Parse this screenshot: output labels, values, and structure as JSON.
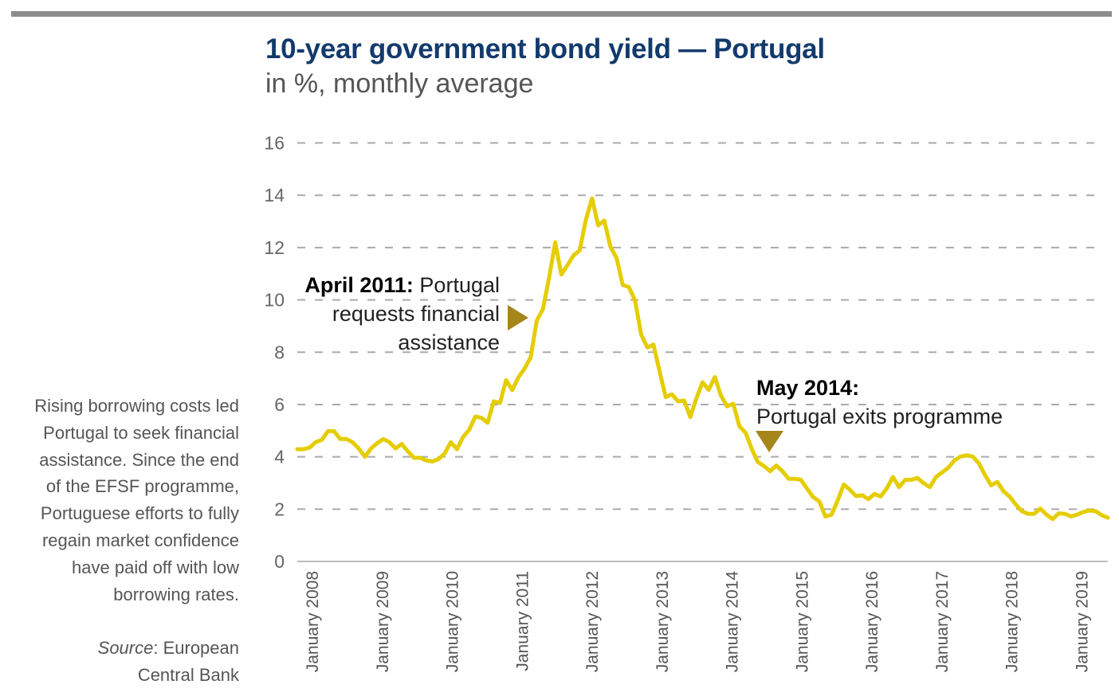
{
  "header": {
    "title": "10-year government bond yield — Portugal",
    "subtitle": "in %, monthly average"
  },
  "sidebar": {
    "lines": [
      "Rising borrowing costs led",
      "Portugal to seek financial",
      "assistance. Since the end",
      "of the EFSF programme,",
      "Portuguese efforts to fully",
      "regain market confidence",
      "have paid off with low",
      "borrowing rates."
    ],
    "source_label": "Source",
    "source_rest": ": European",
    "source_line2": "Central Bank"
  },
  "annotations": {
    "april2011": {
      "bold": "April 2011:",
      "line1": " Portugal",
      "line2": "requests financial",
      "line3": "assistance",
      "index": 39
    },
    "may2014": {
      "bold": "May 2014:",
      "line2": "Portugal exits programme",
      "index": 78
    }
  },
  "colors": {
    "title": "#123a6d",
    "line": "#e5cd00",
    "marker": "#a6861a",
    "grid": "#aaaaaa",
    "text": "#555555"
  },
  "chart_data": {
    "type": "line",
    "title": "10-year government bond yield — Portugal",
    "subtitle": "in %, monthly average",
    "xlabel": "",
    "ylabel": "%",
    "ylim": [
      0,
      16
    ],
    "yticks": [
      "0",
      "2",
      "4",
      "6",
      "8",
      "10",
      "12",
      "14",
      "16"
    ],
    "grid": true,
    "x_start": "January 2008",
    "frequency": "monthly",
    "xticks": [
      "January 2008",
      "January 2009",
      "January 2010",
      "January 2011",
      "January 2012",
      "January 2013",
      "January 2014",
      "January 2015",
      "January 2016",
      "January 2017",
      "January 2018",
      "January 2019"
    ],
    "series": [
      {
        "name": "Portugal 10-year yield",
        "values": [
          4.29,
          4.29,
          4.35,
          4.56,
          4.65,
          4.98,
          4.98,
          4.68,
          4.68,
          4.56,
          4.32,
          4.0,
          4.32,
          4.52,
          4.68,
          4.56,
          4.32,
          4.49,
          4.21,
          3.96,
          3.96,
          3.86,
          3.82,
          3.91,
          4.13,
          4.56,
          4.29,
          4.76,
          5.03,
          5.54,
          5.49,
          5.3,
          6.12,
          6.06,
          6.93,
          6.55,
          7.04,
          7.37,
          7.8,
          9.21,
          9.65,
          10.84,
          12.2,
          10.97,
          11.33,
          11.7,
          11.9,
          13.07,
          13.88,
          12.85,
          13.03,
          12.03,
          11.6,
          10.57,
          10.49,
          9.97,
          8.67,
          8.18,
          8.29,
          7.26,
          6.28,
          6.39,
          6.12,
          6.15,
          5.52,
          6.24,
          6.85,
          6.56,
          7.05,
          6.34,
          5.93,
          6.03,
          5.17,
          4.92,
          4.31,
          3.8,
          3.65,
          3.45,
          3.67,
          3.45,
          3.16,
          3.16,
          3.12,
          2.79,
          2.46,
          2.3,
          1.72,
          1.79,
          2.33,
          2.94,
          2.74,
          2.5,
          2.53,
          2.38,
          2.58,
          2.48,
          2.79,
          3.23,
          2.84,
          3.12,
          3.12,
          3.19,
          2.99,
          2.84,
          3.23,
          3.4,
          3.58,
          3.86,
          4.01,
          4.06,
          4.01,
          3.75,
          3.3,
          2.91,
          3.04,
          2.69,
          2.48,
          2.18,
          1.92,
          1.82,
          1.82,
          2.02,
          1.79,
          1.62,
          1.84,
          1.82,
          1.72,
          1.79,
          1.89,
          1.95,
          1.92,
          1.77,
          1.67
        ]
      }
    ]
  }
}
